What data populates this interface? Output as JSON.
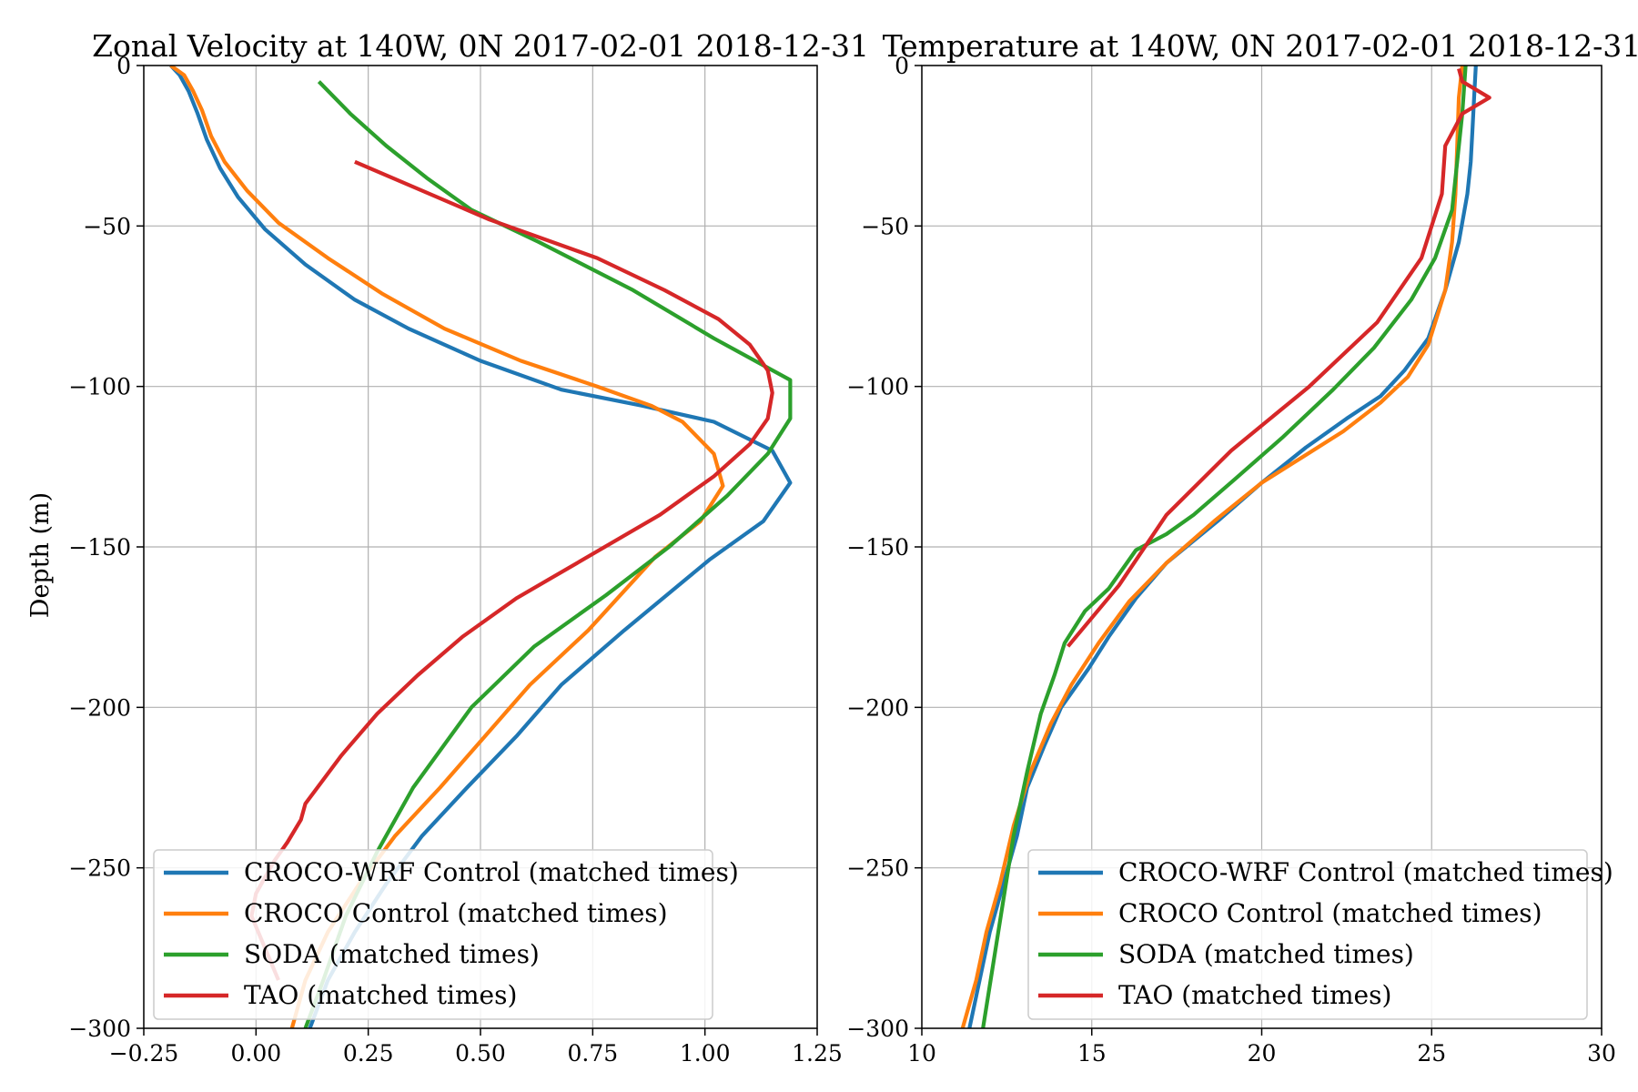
{
  "figure": {
    "ylabel": "Depth (m)"
  },
  "chart_data": [
    {
      "type": "line",
      "title": "Zonal Velocity at 140W, 0N 2017-02-01 2018-12-31",
      "xlabel": "",
      "ylabel": "Depth (m)",
      "xlim": [
        -0.25,
        1.25
      ],
      "ylim": [
        -300,
        0
      ],
      "xticks": [
        -0.25,
        0.0,
        0.25,
        0.5,
        0.75,
        1.0,
        1.25
      ],
      "xtick_labels": [
        "−0.25",
        "0.00",
        "0.25",
        "0.50",
        "0.75",
        "1.00",
        "1.25"
      ],
      "yticks": [
        0,
        -50,
        -100,
        -150,
        -200,
        -250,
        -300
      ],
      "ytick_labels": [
        "0",
        "−50",
        "−100",
        "−150",
        "−200",
        "−250",
        "−300"
      ],
      "grid": true,
      "legend_position": "lower-left",
      "series": [
        {
          "name": "CROCO-WRF Control (matched times)",
          "color": "#1f77b4",
          "x": [
            -0.19,
            -0.17,
            -0.15,
            -0.13,
            -0.11,
            -0.08,
            -0.04,
            0.02,
            0.11,
            0.22,
            0.34,
            0.5,
            0.68,
            0.86,
            1.02,
            1.15,
            1.19,
            1.13,
            1.01,
            0.82,
            0.68,
            0.58,
            0.47,
            0.37,
            0.29,
            0.22,
            0.16,
            0.12
          ],
          "y": [
            0,
            -3,
            -8,
            -15,
            -23,
            -32,
            -41,
            -51,
            -62,
            -73,
            -82,
            -92,
            -101,
            -106,
            -111,
            -120,
            -130,
            -142,
            -154,
            -176,
            -193,
            -209,
            -225,
            -240,
            -255,
            -270,
            -285,
            -300
          ]
        },
        {
          "name": "CROCO Control (matched times)",
          "color": "#ff7f0e",
          "x": [
            -0.19,
            -0.16,
            -0.14,
            -0.12,
            -0.1,
            -0.07,
            -0.02,
            0.05,
            0.16,
            0.28,
            0.42,
            0.59,
            0.76,
            0.88,
            0.95,
            1.02,
            1.04,
            0.99,
            0.89,
            0.74,
            0.61,
            0.51,
            0.41,
            0.31,
            0.23,
            0.16,
            0.11,
            0.08
          ],
          "y": [
            0,
            -3,
            -8,
            -14,
            -22,
            -30,
            -39,
            -49,
            -60,
            -71,
            -82,
            -92,
            -100,
            -106,
            -111,
            -121,
            -131,
            -142,
            -153,
            -176,
            -193,
            -209,
            -225,
            -240,
            -255,
            -270,
            -285,
            -300
          ]
        },
        {
          "name": "SODA (matched times)",
          "color": "#2ca02c",
          "x": [
            0.14,
            0.21,
            0.29,
            0.38,
            0.48,
            0.63,
            0.84,
            1.02,
            1.19,
            1.19,
            1.14,
            1.05,
            0.92,
            0.78,
            0.62,
            0.48,
            0.35,
            0.27,
            0.2,
            0.15,
            0.11
          ],
          "y": [
            -5,
            -15,
            -25,
            -35,
            -45,
            -55,
            -70,
            -85,
            -98,
            -110,
            -121,
            -134,
            -150,
            -165,
            -181,
            -200,
            -225,
            -245,
            -265,
            -285,
            -300
          ]
        },
        {
          "name": "TAO (matched times)",
          "color": "#d62728",
          "x": [
            0.22,
            0.52,
            0.76,
            0.91,
            1.03,
            1.1,
            1.14,
            1.15,
            1.14,
            1.1,
            1.02,
            0.9,
            0.74,
            0.58,
            0.46,
            0.36,
            0.27,
            0.19,
            0.11,
            0.1,
            0.07,
            0.04,
            0.0,
            -0.01,
            0.02,
            0.05
          ],
          "y": [
            -30,
            -48,
            -60,
            -70,
            -79,
            -87,
            -95,
            -102,
            -110,
            -118,
            -128,
            -140,
            -153,
            -166,
            -178,
            -190,
            -202,
            -215,
            -230,
            -235,
            -242,
            -248,
            -258,
            -265,
            -275,
            -285
          ]
        }
      ]
    },
    {
      "type": "line",
      "title": "Temperature at 140W, 0N 2017-02-01 2018-12-31",
      "xlabel": "",
      "ylabel": "",
      "xlim": [
        10,
        30
      ],
      "ylim": [
        -300,
        0
      ],
      "xticks": [
        10,
        15,
        20,
        25,
        30
      ],
      "xtick_labels": [
        "10",
        "15",
        "20",
        "25",
        "30"
      ],
      "yticks": [
        0,
        -50,
        -100,
        -150,
        -200,
        -250,
        -300
      ],
      "ytick_labels": [
        "0",
        "−50",
        "−100",
        "−150",
        "−200",
        "−250",
        "−300"
      ],
      "grid": true,
      "legend_position": "lower-right",
      "series": [
        {
          "name": "CROCO-WRF Control (matched times)",
          "color": "#1f77b4",
          "x": [
            26.3,
            26.25,
            26.2,
            26.15,
            26.05,
            25.8,
            25.4,
            24.9,
            24.2,
            23.5,
            22.5,
            21.3,
            20.0,
            18.7,
            17.2,
            16.3,
            15.5,
            14.9,
            14.1,
            13.6,
            13.1,
            12.8,
            12.4,
            12.0,
            11.7,
            11.4
          ],
          "y": [
            0,
            -10,
            -20,
            -30,
            -40,
            -55,
            -70,
            -85,
            -95,
            -103,
            -110,
            -119,
            -130,
            -142,
            -155,
            -166,
            -178,
            -188,
            -200,
            -212,
            -225,
            -240,
            -255,
            -270,
            -285,
            -300
          ]
        },
        {
          "name": "CROCO Control (matched times)",
          "color": "#ff7f0e",
          "x": [
            25.9,
            25.8,
            25.75,
            25.7,
            25.6,
            25.4,
            24.9,
            24.3,
            23.5,
            22.4,
            21.2,
            20.0,
            18.6,
            17.2,
            16.1,
            15.2,
            14.4,
            13.8,
            13.2,
            12.7,
            12.3,
            11.9,
            11.6,
            11.2
          ],
          "y": [
            0,
            -10,
            -25,
            -40,
            -55,
            -70,
            -87,
            -97,
            -105,
            -114,
            -122,
            -130,
            -142,
            -155,
            -167,
            -180,
            -193,
            -205,
            -220,
            -237,
            -255,
            -270,
            -285,
            -300
          ]
        },
        {
          "name": "SODA (matched times)",
          "color": "#2ca02c",
          "x": [
            26.0,
            25.9,
            25.75,
            25.6,
            25.1,
            24.4,
            23.3,
            22.1,
            20.6,
            19.2,
            18.0,
            17.2,
            16.3,
            15.5,
            14.8,
            14.2,
            13.9,
            13.5,
            13.1,
            12.7,
            12.4,
            12.1,
            11.8
          ],
          "y": [
            0,
            -15,
            -30,
            -45,
            -60,
            -73,
            -88,
            -101,
            -116,
            -129,
            -140,
            -146,
            -151,
            -163,
            -170,
            -180,
            -190,
            -202,
            -220,
            -240,
            -260,
            -280,
            -300
          ]
        },
        {
          "name": "TAO (matched times)",
          "color": "#d62728",
          "x": [
            25.8,
            25.9,
            26.7,
            25.9,
            25.4,
            25.3,
            24.7,
            23.4,
            21.4,
            19.1,
            17.2,
            15.8,
            14.3
          ],
          "y": [
            -1,
            -5,
            -10,
            -15,
            -25,
            -40,
            -60,
            -80,
            -100,
            -120,
            -140,
            -162,
            -181
          ]
        }
      ]
    }
  ]
}
